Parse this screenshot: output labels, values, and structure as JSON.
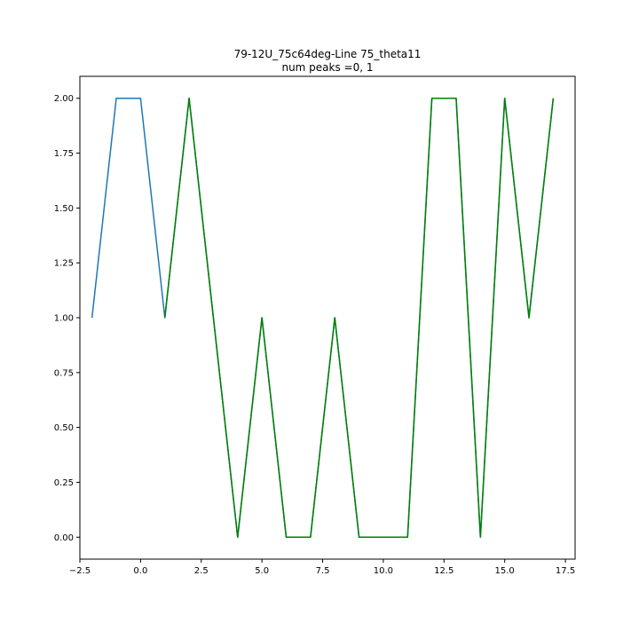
{
  "chart_data": {
    "type": "line",
    "title": "79-12U_75c64deg-Line 75_theta11",
    "subtitle": "num peaks =0, 1",
    "xlabel": "",
    "ylabel": "",
    "xlim": [
      -2.5,
      17.9
    ],
    "ylim": [
      -0.1,
      2.1
    ],
    "grid": false,
    "x_ticks": [
      -2.5,
      0.0,
      2.5,
      5.0,
      7.5,
      10.0,
      12.5,
      15.0,
      17.5
    ],
    "x_tick_labels": [
      "−2.5",
      "0.0",
      "2.5",
      "5.0",
      "7.5",
      "10.0",
      "12.5",
      "15.0",
      "17.5"
    ],
    "y_ticks": [
      0.0,
      0.25,
      0.5,
      0.75,
      1.0,
      1.25,
      1.5,
      1.75,
      2.0
    ],
    "y_tick_labels": [
      "0.00",
      "0.25",
      "0.50",
      "0.75",
      "1.00",
      "1.25",
      "1.50",
      "1.75",
      "2.00"
    ],
    "series": [
      {
        "color": "#1f77b4",
        "x": [
          -2,
          -1,
          0,
          1,
          2,
          3,
          4,
          5,
          6,
          7,
          8,
          9,
          10,
          11,
          12,
          13,
          14,
          15,
          16,
          17
        ],
        "values": [
          1,
          2,
          2,
          1,
          2,
          1,
          0,
          1,
          0,
          0,
          1,
          0,
          0,
          0,
          2,
          2,
          0,
          2,
          1,
          2
        ]
      },
      {
        "color": "#008000",
        "x": [
          1,
          2,
          3,
          4,
          5,
          6,
          7,
          8,
          9,
          10,
          11,
          12,
          13,
          14,
          15,
          16,
          17
        ],
        "values": [
          1,
          2,
          1,
          0,
          1,
          0,
          0,
          1,
          0,
          0,
          0,
          2,
          2,
          0,
          2,
          1,
          2
        ]
      }
    ]
  }
}
